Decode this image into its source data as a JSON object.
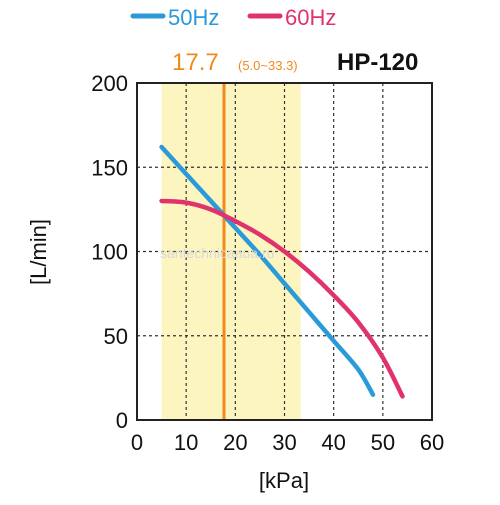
{
  "chart_data": {
    "type": "line",
    "title": "HP-120",
    "annotation": {
      "value_text": "17.7",
      "range_text": "(5.0~33.3)",
      "value": 17.7,
      "range": [
        5.0,
        33.3
      ]
    },
    "xlabel": "[kPa]",
    "ylabel": "[L/min]",
    "xlim": [
      0,
      60
    ],
    "ylim": [
      0,
      200
    ],
    "x_ticks": [
      "0",
      "10",
      "20",
      "30",
      "40",
      "50",
      "60"
    ],
    "y_ticks": [
      "0",
      "50",
      "100",
      "150",
      "200"
    ],
    "grid": true,
    "legend_position": "top",
    "series": [
      {
        "name": "50Hz",
        "color": "#2a9bd8",
        "x": [
          5,
          10,
          15,
          20,
          25,
          30,
          35,
          40,
          45,
          48
        ],
        "y": [
          162,
          146,
          130,
          114,
          98,
          81,
          64,
          47,
          30,
          15
        ]
      },
      {
        "name": "60Hz",
        "color": "#e0336e",
        "x": [
          5,
          10,
          15,
          20,
          25,
          30,
          35,
          40,
          45,
          50,
          54
        ],
        "y": [
          130,
          129,
          125,
          118,
          110,
          100,
          88,
          74,
          58,
          37,
          14
        ]
      }
    ],
    "highlight_color": "#fdf5c0",
    "marker_color": "#f08a1c"
  },
  "watermark": "santechnicaaua.ru"
}
